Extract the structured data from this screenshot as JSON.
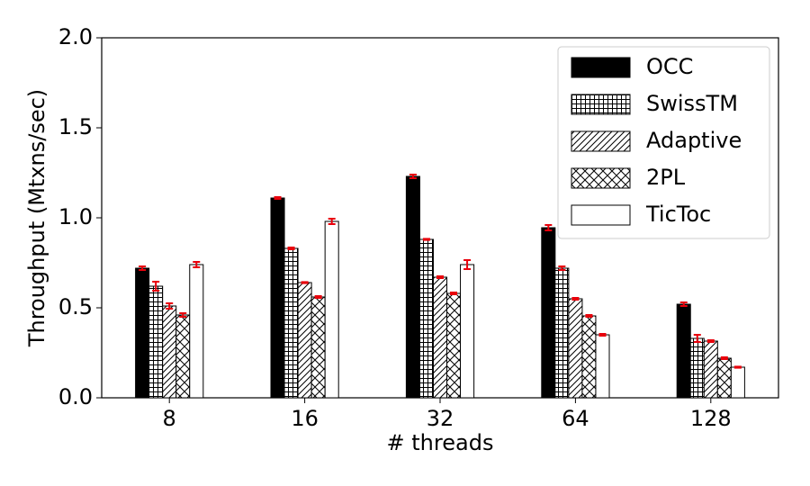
{
  "chart_data": {
    "type": "bar",
    "xlabel": "# threads",
    "ylabel": "Throughput (Mtxns/sec)",
    "categories": [
      "8",
      "16",
      "32",
      "64",
      "128"
    ],
    "series": [
      {
        "name": "OCC",
        "color": "#000000",
        "hatch": "none",
        "values": [
          0.72,
          1.11,
          1.23,
          0.945,
          0.52
        ],
        "errors": [
          0.01,
          0.005,
          0.01,
          0.015,
          0.01
        ]
      },
      {
        "name": "SwissTM",
        "color": "#ffffff",
        "hatch": "grid",
        "values": [
          0.62,
          0.83,
          0.88,
          0.72,
          0.33
        ],
        "errors": [
          0.025,
          0.005,
          0.003,
          0.01,
          0.02
        ]
      },
      {
        "name": "Adaptive",
        "color": "#ffffff",
        "hatch": "diag",
        "values": [
          0.51,
          0.64,
          0.67,
          0.55,
          0.315
        ],
        "errors": [
          0.015,
          0.003,
          0.005,
          0.005,
          0.005
        ]
      },
      {
        "name": "2PL",
        "color": "#ffffff",
        "hatch": "cross",
        "values": [
          0.46,
          0.56,
          0.58,
          0.455,
          0.22
        ],
        "errors": [
          0.01,
          0.005,
          0.005,
          0.005,
          0.005
        ]
      },
      {
        "name": "TicToc",
        "color": "#ffffff",
        "hatch": "none",
        "values": [
          0.74,
          0.98,
          0.74,
          0.35,
          0.17
        ],
        "errors": [
          0.015,
          0.015,
          0.025,
          0.005,
          0.003
        ]
      }
    ],
    "error_color": "#e8000b",
    "ylim": [
      0,
      2.0
    ],
    "yticks": [
      {
        "value": 0,
        "label": "0.0"
      },
      {
        "value": 0.5,
        "label": "0.5"
      },
      {
        "value": 1.0,
        "label": "1.0"
      },
      {
        "value": 1.5,
        "label": "1.5"
      },
      {
        "value": 2.0,
        "label": "2.0"
      }
    ],
    "legend": "upper right"
  }
}
